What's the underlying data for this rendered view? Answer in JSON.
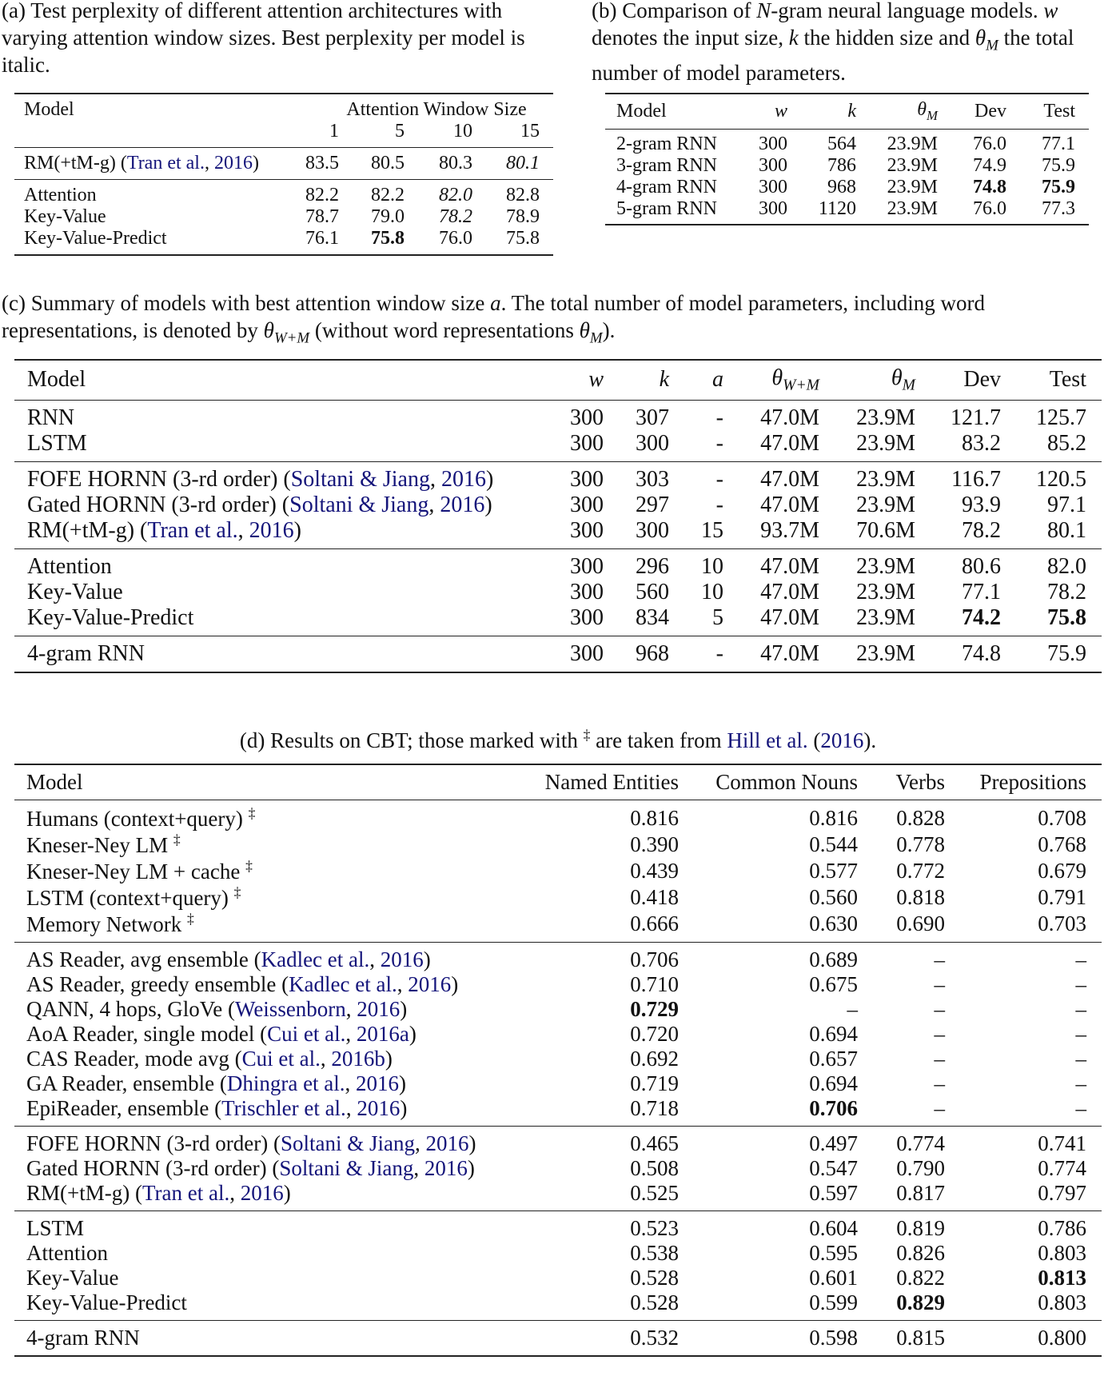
{
  "captions": {
    "a": "(a) Test perplexity of different attention architectures with varying attention window sizes. Best perplexity per model is italic.",
    "b_pre": "(b) Comparison of ",
    "b_N": "N",
    "b_mid1": "-gram neural language models. ",
    "b_w": "w",
    "b_mid2": " denotes the input size, ",
    "b_k": "k",
    "b_mid3": " the hidden size and ",
    "b_theta": "θ",
    "b_sub": "M",
    "b_end": " the total number of model parameters.",
    "c_pre": "(c) Summary of models with best attention window size ",
    "c_a": "a",
    "c_mid": ". The total number of model parameters, including word representations, is denoted by ",
    "c_theta1": "θ",
    "c_sub1": "W+M",
    "c_mid2": " (without word representations ",
    "c_theta2": "θ",
    "c_sub2": "M",
    "c_end": ").",
    "d_pre": "(d) Results on CBT; those marked with ",
    "d_dagger": "‡",
    "d_mid": " are taken from ",
    "d_cite": "Hill et al.",
    "d_open": " (",
    "d_year": "2016",
    "d_end": ")."
  },
  "tables": {
    "a": {
      "header1": [
        "Model",
        "Attention Window Size"
      ],
      "header2": [
        "",
        "1",
        "5",
        "10",
        "15"
      ],
      "groups": [
        [
          {
            "model": {
              "name": "RM(+tM-g)",
              "cite": "Tran et al.",
              "year": "2016"
            },
            "cells": [
              "83.5",
              "80.5",
              "80.3",
              "80.1"
            ],
            "italic": [
              3
            ]
          }
        ],
        [
          {
            "model": {
              "name": "Attention"
            },
            "cells": [
              "82.2",
              "82.2",
              "82.0",
              "82.8"
            ],
            "italic": [
              2
            ]
          },
          {
            "model": {
              "name": "Key-Value"
            },
            "cells": [
              "78.7",
              "79.0",
              "78.2",
              "78.9"
            ],
            "italic": [
              2
            ]
          },
          {
            "model": {
              "name": "Key-Value-Predict"
            },
            "cells": [
              "76.1",
              "75.8",
              "76.0",
              "75.8"
            ],
            "bold": [
              1
            ]
          }
        ]
      ]
    },
    "b": {
      "header": [
        {
          "t": "Model"
        },
        {
          "sym": "w"
        },
        {
          "sym": "k"
        },
        {
          "sym": "θ",
          "sub": "M"
        },
        {
          "t": "Dev"
        },
        {
          "t": "Test"
        }
      ],
      "groups": [
        [
          {
            "model": {
              "name": "2-gram RNN"
            },
            "cells": [
              "300",
              "564",
              "23.9M",
              "76.0",
              "77.1"
            ]
          },
          {
            "model": {
              "name": "3-gram RNN"
            },
            "cells": [
              "300",
              "786",
              "23.9M",
              "74.9",
              "75.9"
            ]
          },
          {
            "model": {
              "name": "4-gram RNN"
            },
            "cells": [
              "300",
              "968",
              "23.9M",
              "74.8",
              "75.9"
            ],
            "bold": [
              3,
              4
            ]
          },
          {
            "model": {
              "name": "5-gram RNN"
            },
            "cells": [
              "300",
              "1120",
              "23.9M",
              "76.0",
              "77.3"
            ]
          }
        ]
      ]
    },
    "c": {
      "header": [
        {
          "t": "Model"
        },
        {
          "sym": "w"
        },
        {
          "sym": "k"
        },
        {
          "sym": "a"
        },
        {
          "sym": "θ",
          "sub": "W+M"
        },
        {
          "sym": "θ",
          "sub": "M"
        },
        {
          "t": "Dev"
        },
        {
          "t": "Test"
        }
      ],
      "groups": [
        [
          {
            "model": {
              "name": "RNN"
            },
            "cells": [
              "300",
              "307",
              "-",
              "47.0M",
              "23.9M",
              "121.7",
              "125.7"
            ]
          },
          {
            "model": {
              "name": "LSTM"
            },
            "cells": [
              "300",
              "300",
              "-",
              "47.0M",
              "23.9M",
              "83.2",
              "85.2"
            ]
          }
        ],
        [
          {
            "model": {
              "name": "FOFE HORNN (3-rd order)",
              "cite": "Soltani & Jiang",
              "year": "2016"
            },
            "cells": [
              "300",
              "303",
              "-",
              "47.0M",
              "23.9M",
              "116.7",
              "120.5"
            ]
          },
          {
            "model": {
              "name": "Gated HORNN (3-rd order)",
              "cite": "Soltani & Jiang",
              "year": "2016"
            },
            "cells": [
              "300",
              "297",
              "-",
              "47.0M",
              "23.9M",
              "93.9",
              "97.1"
            ]
          },
          {
            "model": {
              "name": "RM(+tM-g)",
              "cite": "Tran et al.",
              "year": "2016"
            },
            "cells": [
              "300",
              "300",
              "15",
              "93.7M",
              "70.6M",
              "78.2",
              "80.1"
            ]
          }
        ],
        [
          {
            "model": {
              "name": "Attention"
            },
            "cells": [
              "300",
              "296",
              "10",
              "47.0M",
              "23.9M",
              "80.6",
              "82.0"
            ]
          },
          {
            "model": {
              "name": "Key-Value"
            },
            "cells": [
              "300",
              "560",
              "10",
              "47.0M",
              "23.9M",
              "77.1",
              "78.2"
            ]
          },
          {
            "model": {
              "name": "Key-Value-Predict"
            },
            "cells": [
              "300",
              "834",
              "5",
              "47.0M",
              "23.9M",
              "74.2",
              "75.8"
            ],
            "bold": [
              5,
              6
            ]
          }
        ],
        [
          {
            "model": {
              "name": "4-gram RNN"
            },
            "cells": [
              "300",
              "968",
              "-",
              "47.0M",
              "23.9M",
              "74.8",
              "75.9"
            ]
          }
        ]
      ]
    },
    "d": {
      "header": [
        {
          "t": "Model"
        },
        {
          "t": "Named Entities"
        },
        {
          "t": "Common Nouns"
        },
        {
          "t": "Verbs"
        },
        {
          "t": "Prepositions"
        }
      ],
      "groups": [
        [
          {
            "model": {
              "name": "Humans (context+query)",
              "dagger": "‡"
            },
            "cells": [
              "0.816",
              "0.816",
              "0.828",
              "0.708"
            ]
          },
          {
            "model": {
              "name": "Kneser-Ney LM",
              "dagger": "‡"
            },
            "cells": [
              "0.390",
              "0.544",
              "0.778",
              "0.768"
            ]
          },
          {
            "model": {
              "name": "Kneser-Ney LM + cache",
              "dagger": "‡"
            },
            "cells": [
              "0.439",
              "0.577",
              "0.772",
              "0.679"
            ]
          },
          {
            "model": {
              "name": "LSTM (context+query)",
              "dagger": "‡"
            },
            "cells": [
              "0.418",
              "0.560",
              "0.818",
              "0.791"
            ]
          },
          {
            "model": {
              "name": "Memory Network",
              "dagger": "‡"
            },
            "cells": [
              "0.666",
              "0.630",
              "0.690",
              "0.703"
            ]
          }
        ],
        [
          {
            "model": {
              "name": "AS Reader, avg ensemble",
              "cite": "Kadlec et al.",
              "year": "2016"
            },
            "cells": [
              "0.706",
              "0.689",
              "–",
              "–"
            ]
          },
          {
            "model": {
              "name": "AS Reader, greedy ensemble",
              "cite": "Kadlec et al.",
              "year": "2016"
            },
            "cells": [
              "0.710",
              "0.675",
              "–",
              "–"
            ]
          },
          {
            "model": {
              "name": "QANN, 4 hops, GloVe",
              "cite": "Weissenborn",
              "year": "2016"
            },
            "cells": [
              "0.729",
              "–",
              "–",
              "–"
            ],
            "bold": [
              0
            ]
          },
          {
            "model": {
              "name": "AoA Reader, single model",
              "cite": "Cui et al.",
              "year": "2016a"
            },
            "cells": [
              "0.720",
              "0.694",
              "–",
              "–"
            ]
          },
          {
            "model": {
              "name": "CAS Reader, mode avg",
              "cite": "Cui et al.",
              "year": "2016b"
            },
            "cells": [
              "0.692",
              "0.657",
              "–",
              "–"
            ]
          },
          {
            "model": {
              "name": "GA Reader, ensemble",
              "cite": "Dhingra et al.",
              "year": "2016"
            },
            "cells": [
              "0.719",
              "0.694",
              "–",
              "–"
            ]
          },
          {
            "model": {
              "name": "EpiReader, ensemble",
              "cite": "Trischler et al.",
              "year": "2016"
            },
            "cells": [
              "0.718",
              "0.706",
              "–",
              "–"
            ],
            "bold": [
              1
            ]
          }
        ],
        [
          {
            "model": {
              "name": "FOFE HORNN (3-rd order)",
              "cite": "Soltani & Jiang",
              "year": "2016"
            },
            "cells": [
              "0.465",
              "0.497",
              "0.774",
              "0.741"
            ]
          },
          {
            "model": {
              "name": "Gated HORNN (3-rd order)",
              "cite": "Soltani & Jiang",
              "year": "2016"
            },
            "cells": [
              "0.508",
              "0.547",
              "0.790",
              "0.774"
            ]
          },
          {
            "model": {
              "name": "RM(+tM-g)",
              "cite": "Tran et al.",
              "year": "2016"
            },
            "cells": [
              "0.525",
              "0.597",
              "0.817",
              "0.797"
            ]
          }
        ],
        [
          {
            "model": {
              "name": "LSTM"
            },
            "cells": [
              "0.523",
              "0.604",
              "0.819",
              "0.786"
            ]
          },
          {
            "model": {
              "name": "Attention"
            },
            "cells": [
              "0.538",
              "0.595",
              "0.826",
              "0.803"
            ]
          },
          {
            "model": {
              "name": "Key-Value"
            },
            "cells": [
              "0.528",
              "0.601",
              "0.822",
              "0.813"
            ],
            "bold": [
              3
            ]
          },
          {
            "model": {
              "name": "Key-Value-Predict"
            },
            "cells": [
              "0.528",
              "0.599",
              "0.829",
              "0.803"
            ],
            "bold": [
              2
            ]
          }
        ],
        [
          {
            "model": {
              "name": "4-gram RNN"
            },
            "cells": [
              "0.532",
              "0.598",
              "0.815",
              "0.800"
            ]
          }
        ]
      ]
    }
  },
  "colors": {
    "link": "#14147a",
    "text": "#111111"
  }
}
